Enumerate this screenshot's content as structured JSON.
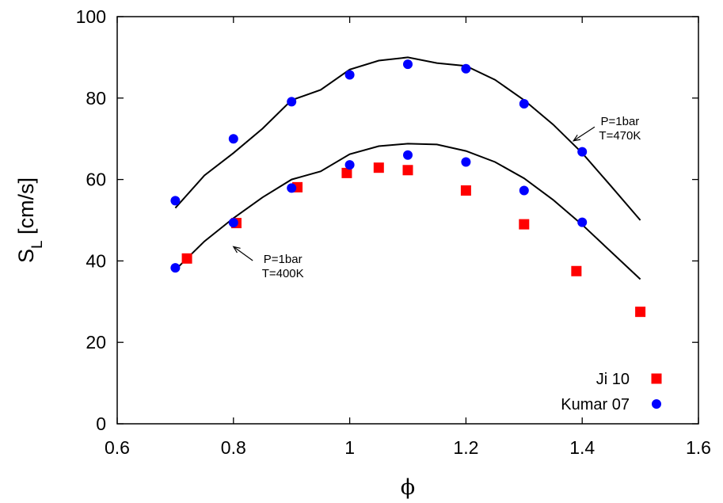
{
  "chart_data": {
    "type": "scatter",
    "title": "",
    "xlabel": "ϕ",
    "ylabel": {
      "main": "S",
      "sub": "L",
      "unit": " [cm/s]"
    },
    "xlim": [
      0.6,
      1.6
    ],
    "ylim": [
      0,
      100
    ],
    "xticks": [
      0.6,
      0.8,
      1,
      1.2,
      1.4,
      1.6
    ],
    "xtick_labels": [
      "0.6",
      "0.8",
      "1",
      "1.2",
      "1.4",
      "1.6"
    ],
    "yticks": [
      0,
      20,
      40,
      60,
      80,
      100
    ],
    "ytick_labels": [
      "0",
      "20",
      "40",
      "60",
      "80",
      "100"
    ],
    "grid": false,
    "legend_position": "bottom-right",
    "series": [
      {
        "name": "Ji 10",
        "marker": "square",
        "color": "#ff0000",
        "x": [
          0.72,
          0.805,
          0.91,
          0.995,
          1.05,
          1.1,
          1.2,
          1.3,
          1.39,
          1.5
        ],
        "y": [
          40.6,
          49.3,
          58.1,
          61.6,
          62.9,
          62.3,
          57.3,
          49.0,
          37.5,
          27.5
        ]
      },
      {
        "name": "Kumar 07",
        "marker": "circle",
        "color": "#0000ff",
        "x": [
          0.7,
          0.8,
          0.9,
          1.0,
          1.1,
          1.2,
          1.3,
          1.4,
          0.7,
          0.8,
          0.9,
          1.0,
          1.1,
          1.2,
          1.3,
          1.4
        ],
        "y": [
          54.8,
          70.0,
          79.1,
          85.7,
          88.3,
          87.2,
          78.6,
          66.8,
          38.3,
          49.4,
          57.9,
          63.6,
          66.0,
          64.3,
          57.3,
          49.5
        ]
      },
      {
        "name": "",
        "type": "line",
        "color": "#000000",
        "x": [
          0.7,
          0.75,
          0.8,
          0.85,
          0.9,
          0.95,
          1.0,
          1.05,
          1.1,
          1.15,
          1.2,
          1.25,
          1.3,
          1.35,
          1.4,
          1.45,
          1.5
        ],
        "y": [
          53.0,
          61.0,
          66.5,
          72.5,
          79.5,
          82.0,
          87.0,
          89.2,
          90.0,
          88.6,
          87.9,
          84.5,
          79.5,
          73.5,
          66.5,
          58.3,
          50.0
        ]
      },
      {
        "name": "",
        "type": "line",
        "color": "#000000",
        "x": [
          0.7,
          0.75,
          0.8,
          0.85,
          0.9,
          0.95,
          1.0,
          1.05,
          1.1,
          1.15,
          1.2,
          1.25,
          1.3,
          1.35,
          1.4,
          1.45,
          1.5
        ],
        "y": [
          37.8,
          44.8,
          50.5,
          55.6,
          60.0,
          62.0,
          66.2,
          68.2,
          68.8,
          68.6,
          67.0,
          64.3,
          60.3,
          55.0,
          48.9,
          42.2,
          35.5
        ]
      }
    ],
    "annotations": [
      {
        "lines": [
          "P=1bar",
          "T=470K"
        ],
        "arrow_to": [
          1.385,
          69.5
        ],
        "text_at": [
          1.465,
          73.3
        ]
      },
      {
        "lines": [
          "P=1bar",
          "T=400K"
        ],
        "arrow_to": [
          0.8,
          43.5
        ],
        "text_at": [
          0.885,
          39.5
        ]
      }
    ]
  }
}
